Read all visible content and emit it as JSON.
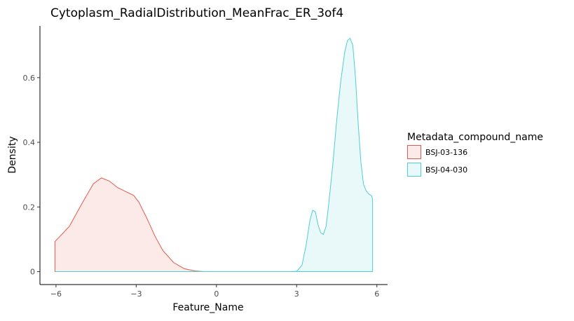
{
  "chart_data": {
    "type": "area",
    "title": "Cytoplasm_RadialDistribution_MeanFrac_ER_3of4",
    "xlabel": "Feature_Name",
    "ylabel": "Density",
    "xlim": [
      -6.6,
      6.4
    ],
    "ylim": [
      -0.04,
      0.76
    ],
    "x_ticks": [
      -6,
      -3,
      0,
      3,
      6
    ],
    "x_tick_labels": [
      "−6",
      "−3",
      "0",
      "3",
      "6"
    ],
    "y_ticks": [
      0,
      0.2,
      0.4,
      0.6
    ],
    "y_tick_labels": [
      "0",
      "0.2",
      "0.4",
      "0.6"
    ],
    "grid": false,
    "legend": {
      "title": "Metadata_compound_name",
      "position": "right"
    },
    "series": [
      {
        "name": "BSJ-03-136",
        "color": "#e15a4b",
        "fill": "#fbeae8",
        "x": [
          -6.04,
          -5.5,
          -5.0,
          -4.6,
          -4.3,
          -4.0,
          -3.7,
          -3.4,
          -3.1,
          -2.9,
          -2.6,
          -2.3,
          -2.0,
          -1.6,
          -1.2,
          -0.8,
          -0.5,
          0.0,
          0.5,
          1.0,
          1.5,
          2.0,
          2.5,
          3.0,
          3.5,
          4.0,
          4.5,
          5.0,
          5.6
        ],
        "y": [
          0.093,
          0.14,
          0.215,
          0.272,
          0.29,
          0.28,
          0.26,
          0.248,
          0.236,
          0.215,
          0.165,
          0.11,
          0.065,
          0.028,
          0.009,
          0.002,
          0.0005,
          0.0,
          0.0,
          0.0,
          0.0,
          0.0,
          0.0,
          0.0,
          0.0,
          0.0,
          0.0,
          0.0,
          0.0
        ]
      },
      {
        "name": "BSJ-04-030",
        "color": "#4dcfd4",
        "fill": "#e9f8f9",
        "x": [
          -6.04,
          -3.0,
          0.0,
          2.4,
          2.8,
          3.0,
          3.2,
          3.35,
          3.5,
          3.6,
          3.7,
          3.8,
          3.9,
          4.0,
          4.1,
          4.2,
          4.35,
          4.5,
          4.65,
          4.8,
          4.9,
          5.0,
          5.1,
          5.2,
          5.3,
          5.4,
          5.5,
          5.6,
          5.7,
          5.8,
          5.84
        ],
        "y": [
          0.0,
          0.0,
          0.0,
          0.0,
          0.0,
          0.001,
          0.02,
          0.08,
          0.16,
          0.19,
          0.185,
          0.145,
          0.12,
          0.115,
          0.14,
          0.21,
          0.33,
          0.47,
          0.59,
          0.68,
          0.715,
          0.722,
          0.7,
          0.6,
          0.46,
          0.34,
          0.27,
          0.25,
          0.24,
          0.235,
          0.225
        ]
      }
    ]
  }
}
